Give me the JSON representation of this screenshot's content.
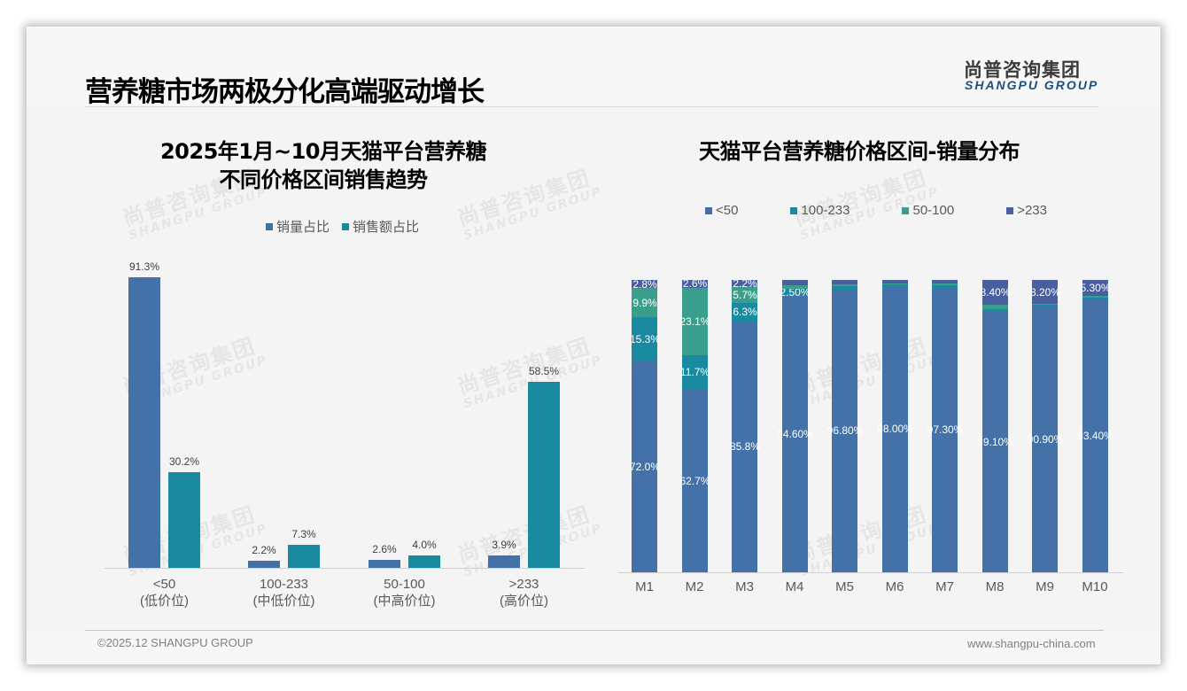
{
  "header": {
    "title": "营养糖市场两极分化高端驱动增长",
    "logo_cn": "尚普咨询集团",
    "logo_en": "SHANGPU GROUP"
  },
  "watermark": {
    "cn": "尚普咨询集团",
    "en": "SHANGPU GROUP"
  },
  "colors": {
    "volume": "#4472a8",
    "sales": "#1a8aa0",
    "lt50": "#4472a8",
    "r100_233": "#1a8aa0",
    "r50_100": "#3a9e8c",
    "gt233": "#4a5fa0"
  },
  "left_chart": {
    "title_line1": "2025年1月~10月天猫平台营养糖",
    "title_line2": "不同价格区间销售趋势",
    "legend": [
      "销量占比",
      "销售额占比"
    ],
    "categories": [
      {
        "range": "<50",
        "tier": "(低价位)",
        "volume": "91.3%",
        "sales": "30.2%"
      },
      {
        "range": "100-233",
        "tier": "(中低价位)",
        "volume": "2.2%",
        "sales": "7.3%"
      },
      {
        "range": "50-100",
        "tier": "(中高价位)",
        "volume": "2.6%",
        "sales": "4.0%"
      },
      {
        "range": ">233",
        "tier": "(高价位)",
        "volume": "3.9%",
        "sales": "58.5%"
      }
    ]
  },
  "right_chart": {
    "title": "天猫平台营养糖价格区间-销量分布",
    "legend": [
      "<50",
      "100-233",
      "50-100",
      ">233"
    ],
    "months": [
      {
        "m": "M1",
        "lt50": "72.0%",
        "r100_233": "15.3%",
        "r50_100": "9.9%",
        "gt233": "2.8%"
      },
      {
        "m": "M2",
        "lt50": "62.7%",
        "r100_233": "11.7%",
        "r50_100": "23.1%",
        "gt233": "2.6%"
      },
      {
        "m": "M3",
        "lt50": "85.8%",
        "r100_233": "6.3%",
        "r50_100": "5.7%",
        "gt233": "2.2%"
      },
      {
        "m": "M4",
        "lt50": "94.60%",
        "r100_233": "2.50%",
        "r50_100": "",
        "gt233": ""
      },
      {
        "m": "M5",
        "lt50": "96.80%",
        "r100_233": "",
        "r50_100": "",
        "gt233": ""
      },
      {
        "m": "M6",
        "lt50": "98.00%",
        "r100_233": "",
        "r50_100": "",
        "gt233": ""
      },
      {
        "m": "M7",
        "lt50": "97.30%",
        "r100_233": "",
        "r50_100": "",
        "gt233": ""
      },
      {
        "m": "M8",
        "lt50": "89.10%",
        "r100_233": "",
        "r50_100": "",
        "gt233": "8.40%"
      },
      {
        "m": "M9",
        "lt50": "90.90%",
        "r100_233": "",
        "r50_100": "",
        "gt233": "8.20%"
      },
      {
        "m": "M10",
        "lt50": "93.40%",
        "r100_233": "",
        "r50_100": "",
        "gt233": "5.30%"
      }
    ]
  },
  "footer": {
    "copyright": "©2025.12 SHANGPU GROUP",
    "website": "www.shangpu-china.com"
  },
  "chart_data": [
    {
      "type": "bar",
      "title": "2025年1月~10月天猫平台营养糖不同价格区间销售趋势",
      "categories": [
        "<50 (低价位)",
        "100-233 (中低价位)",
        "50-100 (中高价位)",
        ">233 (高价位)"
      ],
      "series": [
        {
          "name": "销量占比",
          "values": [
            91.3,
            2.2,
            2.6,
            3.9
          ]
        },
        {
          "name": "销售额占比",
          "values": [
            30.2,
            7.3,
            4.0,
            58.5
          ]
        }
      ],
      "xlabel": "",
      "ylabel": "",
      "unit": "%",
      "legend_position": "top",
      "grid": false
    },
    {
      "type": "bar",
      "stacked": true,
      "title": "天猫平台营养糖价格区间-销量分布",
      "categories": [
        "M1",
        "M2",
        "M3",
        "M4",
        "M5",
        "M6",
        "M7",
        "M8",
        "M9",
        "M10"
      ],
      "series": [
        {
          "name": "<50",
          "values": [
            72.0,
            62.7,
            85.8,
            94.6,
            96.8,
            98.0,
            97.3,
            89.1,
            90.9,
            93.4
          ]
        },
        {
          "name": "100-233",
          "values": [
            15.3,
            11.7,
            6.3,
            2.5,
            1.0,
            0.5,
            1.0,
            0.8,
            0.6,
            0.6
          ]
        },
        {
          "name": "50-100",
          "values": [
            9.9,
            23.1,
            5.7,
            1.0,
            0.7,
            0.3,
            0.5,
            1.7,
            0.3,
            0.7
          ]
        },
        {
          "name": ">233",
          "values": [
            2.8,
            2.6,
            2.2,
            1.9,
            1.5,
            1.2,
            1.2,
            8.4,
            8.2,
            5.3
          ]
        }
      ],
      "unit": "%",
      "ylim": [
        0,
        100
      ],
      "legend_position": "top",
      "grid": false
    }
  ]
}
